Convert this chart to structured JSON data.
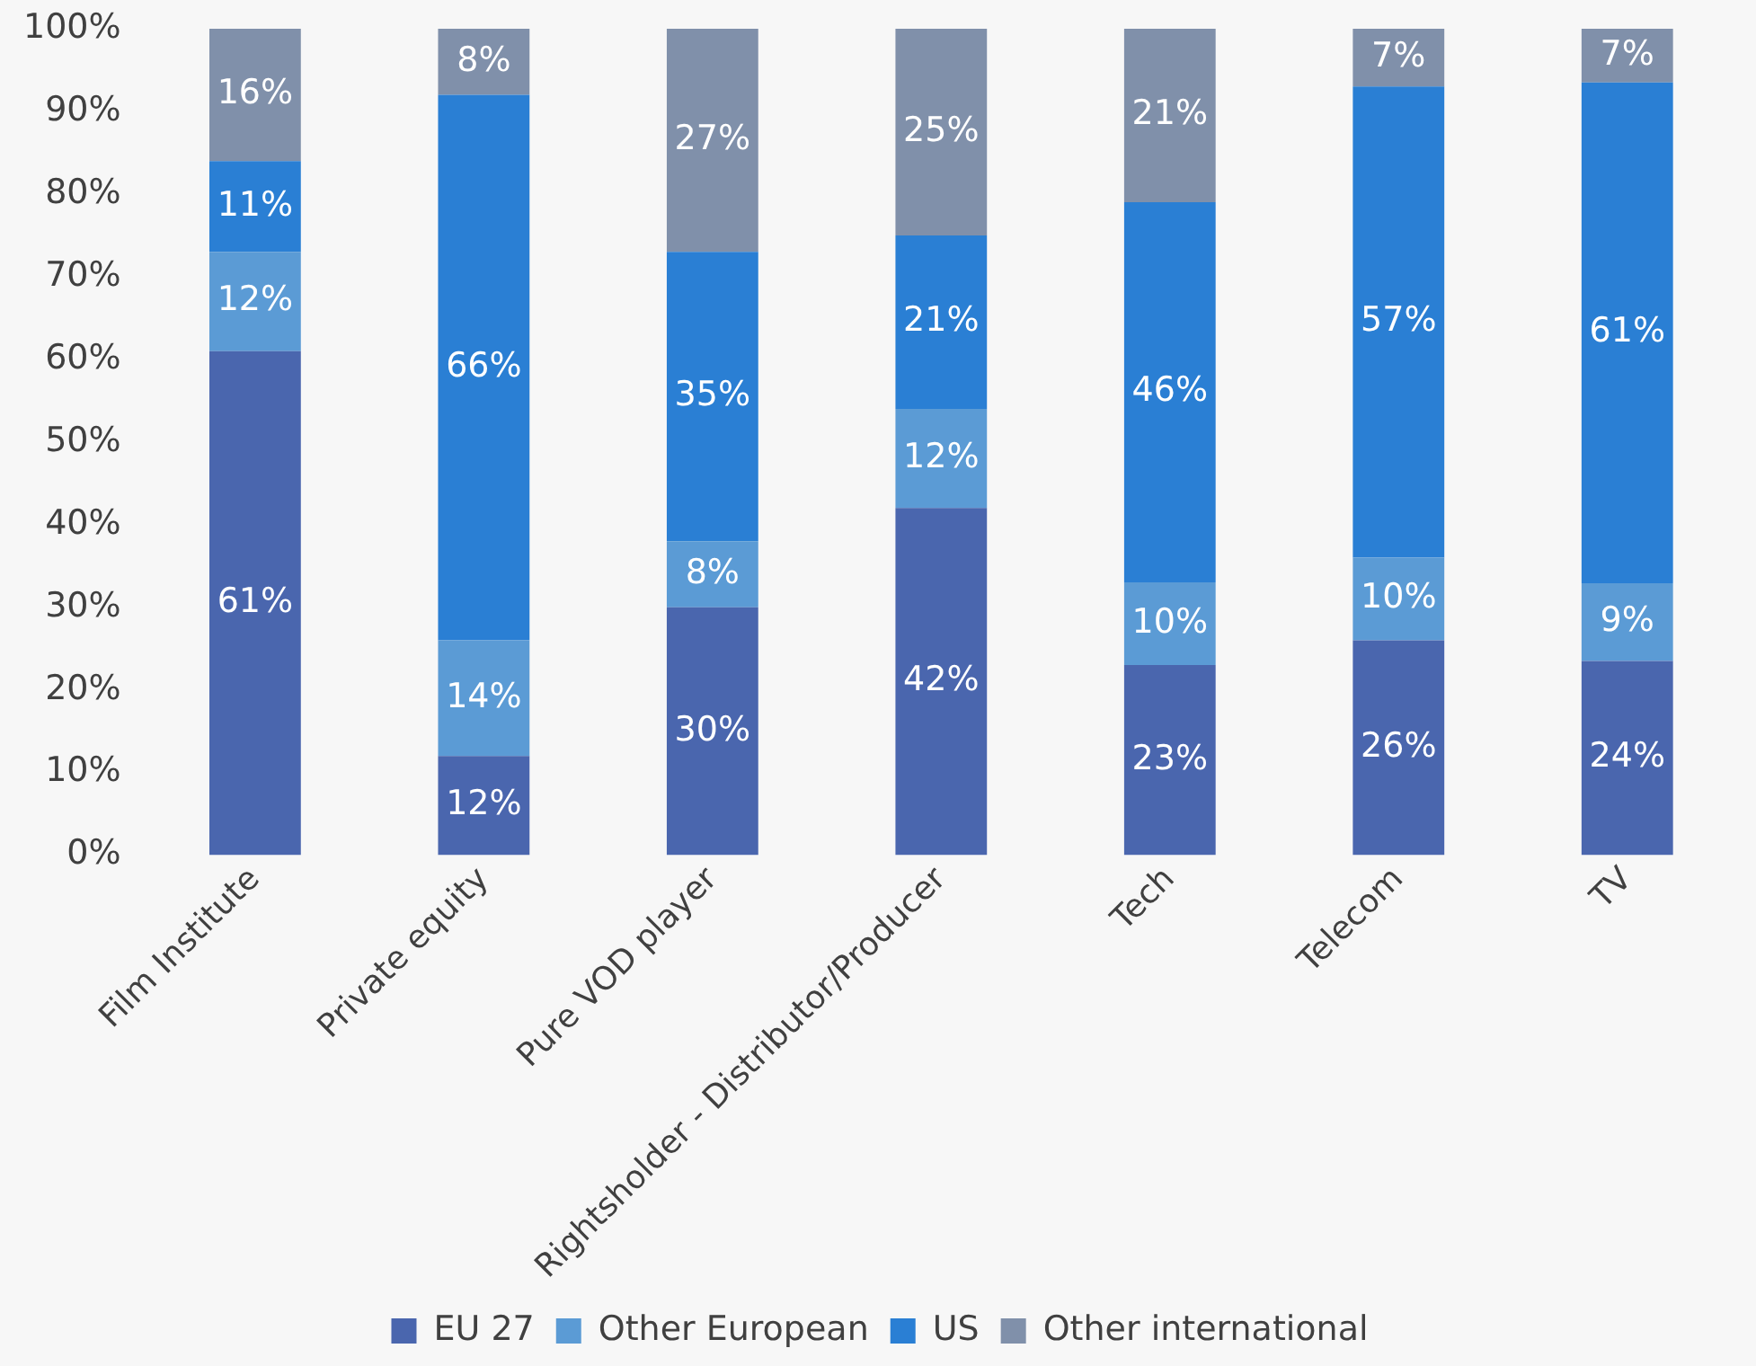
{
  "chart_data": {
    "type": "bar",
    "stacked": true,
    "categories": [
      "Film Institute",
      "Private equity",
      "Pure VOD player",
      "Rightsholder - Distributor/Producer",
      "Tech",
      "Telecom",
      "TV"
    ],
    "series": [
      {
        "name": "EU 27",
        "color": "#4a66ae",
        "values": [
          61,
          12,
          30,
          42,
          23,
          26,
          23.5
        ],
        "value_labels": [
          "61%",
          "12%",
          "30%",
          "42%",
          "23%",
          "26%",
          "24%"
        ]
      },
      {
        "name": "Other European",
        "color": "#5b9bd5",
        "values": [
          12,
          14,
          8,
          12,
          10,
          10,
          9.4
        ],
        "value_labels": [
          "12%",
          "14%",
          "8%",
          "12%",
          "10%",
          "10%",
          "9%"
        ]
      },
      {
        "name": "US",
        "color": "#2a7fd4",
        "values": [
          11,
          66,
          35,
          21,
          46,
          57,
          60.6
        ],
        "value_labels": [
          "11%",
          "66%",
          "35%",
          "21%",
          "46%",
          "57%",
          "61%"
        ]
      },
      {
        "name": "Other international",
        "color": "#8090aa",
        "values": [
          16,
          8,
          27,
          25,
          21,
          7,
          6.5
        ],
        "value_labels": [
          "16%",
          "8%",
          "27%",
          "25%",
          "21%",
          "7%",
          "7%"
        ]
      }
    ],
    "ylim": [
      0,
      100
    ],
    "yticks": [
      {
        "value": 0,
        "label": "0%"
      },
      {
        "value": 10,
        "label": "10%"
      },
      {
        "value": 20,
        "label": "20%"
      },
      {
        "value": 30,
        "label": "30%"
      },
      {
        "value": 40,
        "label": "40%"
      },
      {
        "value": 50,
        "label": "50%"
      },
      {
        "value": 60,
        "label": "60%"
      },
      {
        "value": 70,
        "label": "70%"
      },
      {
        "value": 80,
        "label": "80%"
      },
      {
        "value": 90,
        "label": "90%"
      },
      {
        "value": 100,
        "label": "100%"
      }
    ],
    "grid": false,
    "legend": "bottom"
  }
}
